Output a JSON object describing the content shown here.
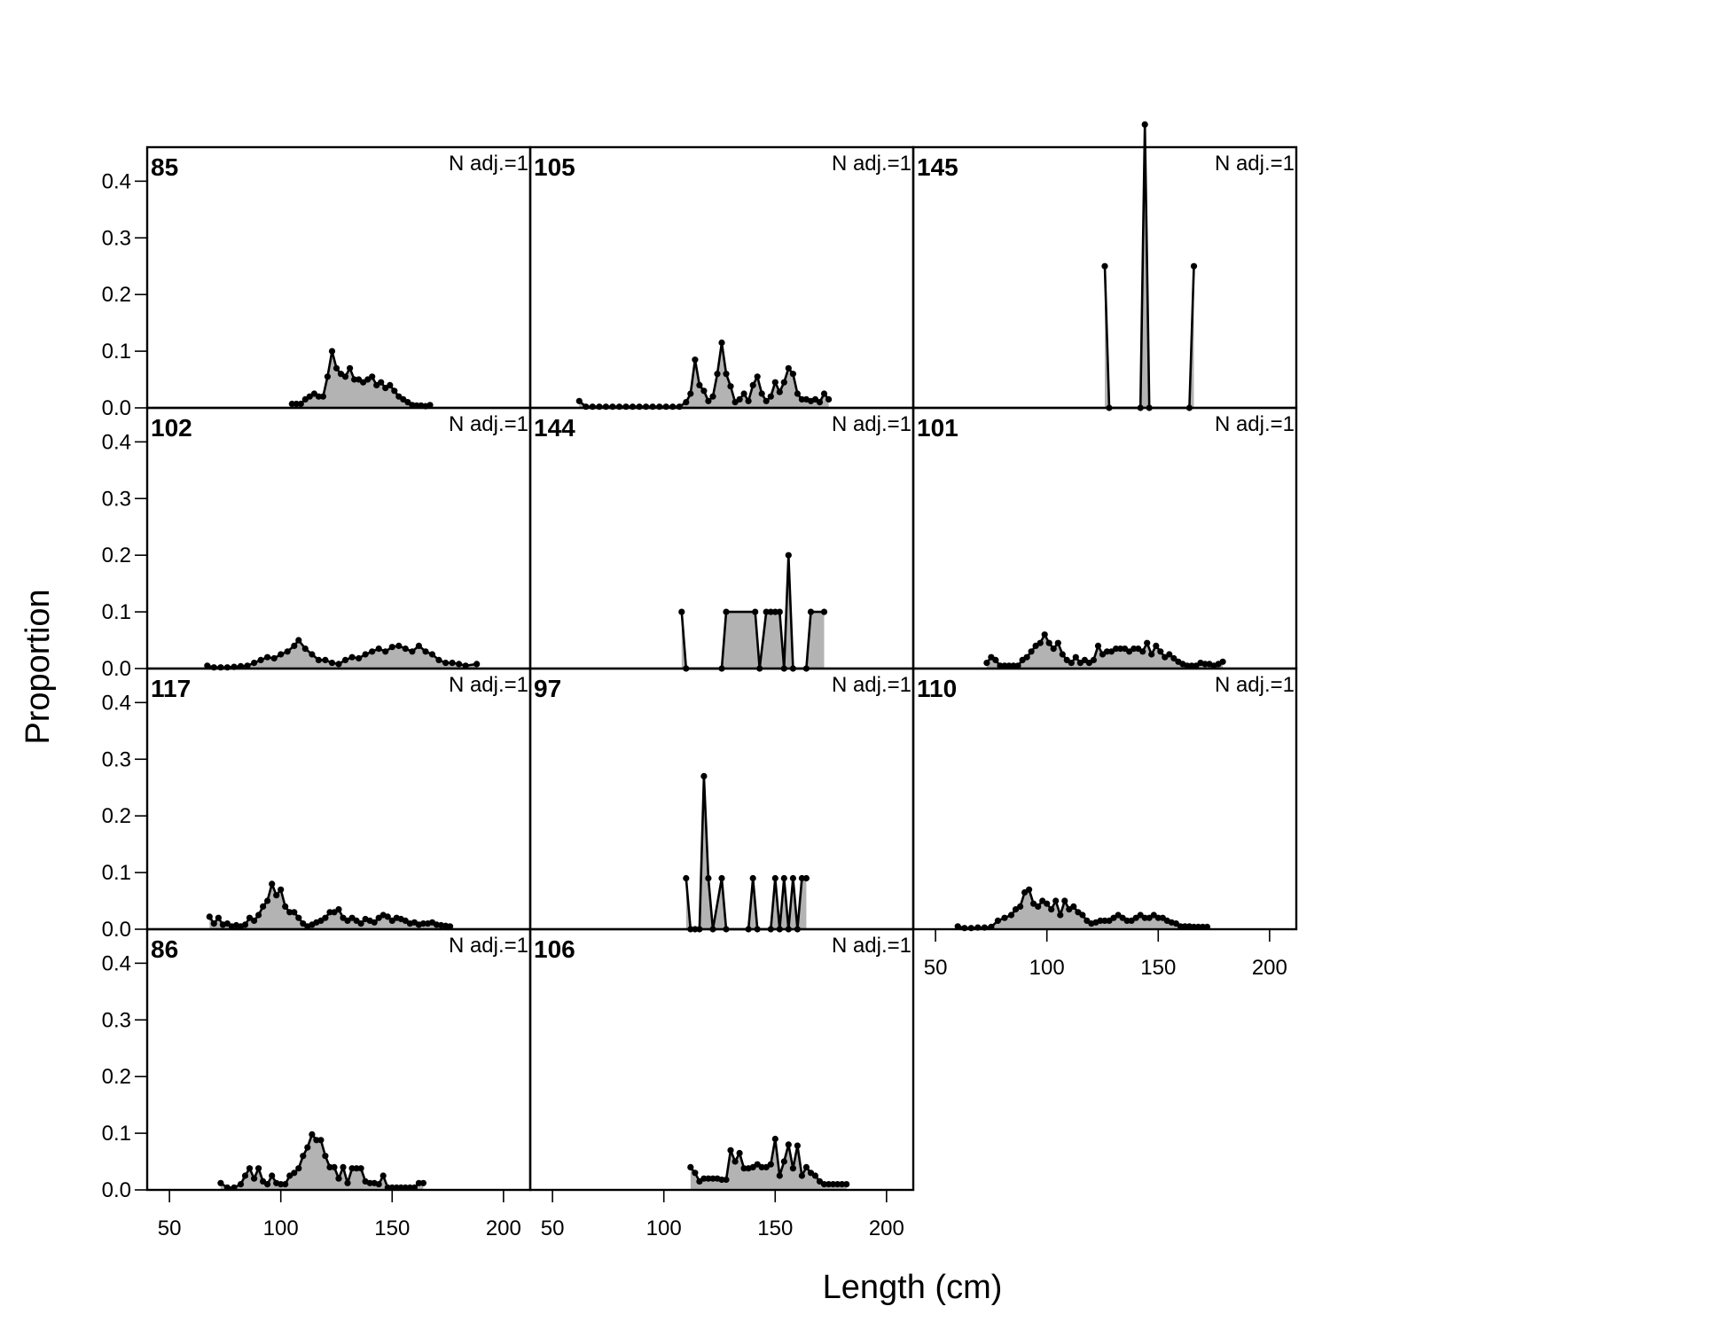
{
  "chart_data": {
    "type": "area",
    "xlabel": "Length (cm)",
    "ylabel": "Proportion",
    "xlim": [
      40,
      212
    ],
    "ylim": [
      0,
      0.46
    ],
    "x_ticks": [
      50,
      100,
      150,
      200
    ],
    "y_ticks": [
      "0.0",
      "0.1",
      "0.2",
      "0.3",
      "0.4"
    ],
    "panels": [
      {
        "label": "85",
        "note": "N adj.=1",
        "x": [
          105,
          107,
          109,
          111,
          113,
          115,
          117,
          119,
          121,
          123,
          125,
          127,
          129,
          131,
          133,
          135,
          137,
          139,
          141,
          143,
          145,
          147,
          149,
          151,
          153,
          155,
          157,
          159,
          161,
          163,
          165,
          167
        ],
        "y": [
          0.007,
          0.007,
          0.007,
          0.015,
          0.02,
          0.025,
          0.02,
          0.02,
          0.055,
          0.1,
          0.07,
          0.06,
          0.055,
          0.07,
          0.05,
          0.05,
          0.045,
          0.05,
          0.055,
          0.04,
          0.045,
          0.035,
          0.04,
          0.03,
          0.02,
          0.015,
          0.01,
          0.005,
          0.004,
          0.004,
          0.003,
          0.005
        ]
      },
      {
        "label": "102",
        "note": "N adj.=1",
        "x": [
          67,
          70,
          73,
          76,
          79,
          82,
          85,
          88,
          91,
          94,
          97,
          100,
          103,
          106,
          108,
          111,
          114,
          117,
          120,
          123,
          126,
          129,
          132,
          135,
          138,
          141,
          144,
          147,
          150,
          153,
          156,
          159,
          162,
          165,
          168,
          171,
          174,
          177,
          180,
          183,
          188
        ],
        "y": [
          0.005,
          0.002,
          0.002,
          0.002,
          0.003,
          0.004,
          0.005,
          0.01,
          0.015,
          0.02,
          0.018,
          0.025,
          0.03,
          0.04,
          0.05,
          0.035,
          0.025,
          0.015,
          0.015,
          0.01,
          0.008,
          0.015,
          0.02,
          0.018,
          0.025,
          0.03,
          0.035,
          0.03,
          0.038,
          0.04,
          0.035,
          0.03,
          0.04,
          0.03,
          0.025,
          0.015,
          0.01,
          0.01,
          0.008,
          0.005,
          0.008
        ]
      },
      {
        "label": "117",
        "note": "N adj.=1",
        "x": [
          68,
          70,
          72,
          74,
          76,
          78,
          80,
          82,
          84,
          86,
          88,
          90,
          92,
          94,
          96,
          98,
          100,
          102,
          104,
          106,
          108,
          110,
          112,
          114,
          116,
          118,
          120,
          122,
          124,
          126,
          128,
          130,
          132,
          134,
          136,
          138,
          140,
          142,
          144,
          146,
          148,
          150,
          152,
          154,
          156,
          158,
          160,
          162,
          164,
          166,
          168,
          170,
          172,
          174,
          176
        ],
        "y": [
          0.022,
          0.01,
          0.02,
          0.008,
          0.01,
          0.005,
          0.007,
          0.005,
          0.008,
          0.02,
          0.015,
          0.025,
          0.04,
          0.05,
          0.08,
          0.06,
          0.07,
          0.04,
          0.03,
          0.03,
          0.02,
          0.01,
          0.005,
          0.008,
          0.012,
          0.015,
          0.02,
          0.03,
          0.03,
          0.035,
          0.02,
          0.015,
          0.02,
          0.015,
          0.01,
          0.018,
          0.015,
          0.012,
          0.02,
          0.025,
          0.022,
          0.015,
          0.02,
          0.018,
          0.015,
          0.01,
          0.012,
          0.008,
          0.01,
          0.01,
          0.012,
          0.008,
          0.007,
          0.006,
          0.005
        ]
      },
      {
        "label": "86",
        "note": "N adj.=1",
        "x": [
          73,
          76,
          79,
          82,
          84,
          86,
          88,
          90,
          92,
          94,
          96,
          98,
          100,
          102,
          104,
          106,
          108,
          110,
          112,
          114,
          116,
          118,
          120,
          122,
          124,
          126,
          128,
          130,
          132,
          134,
          136,
          138,
          140,
          142,
          144,
          146,
          148,
          150,
          152,
          154,
          156,
          158,
          160,
          162,
          164
        ],
        "y": [
          0.012,
          0.004,
          0.004,
          0.01,
          0.025,
          0.038,
          0.02,
          0.038,
          0.015,
          0.01,
          0.025,
          0.012,
          0.01,
          0.01,
          0.025,
          0.03,
          0.038,
          0.06,
          0.075,
          0.098,
          0.088,
          0.088,
          0.06,
          0.04,
          0.04,
          0.02,
          0.04,
          0.012,
          0.038,
          0.038,
          0.038,
          0.015,
          0.012,
          0.012,
          0.01,
          0.025,
          0.004,
          0.004,
          0.004,
          0.004,
          0.004,
          0.004,
          0.004,
          0.012,
          0.012
        ]
      },
      {
        "label": "105",
        "note": "N adj.=1",
        "x": [
          62,
          65,
          68,
          71,
          74,
          77,
          80,
          83,
          86,
          89,
          92,
          95,
          98,
          101,
          104,
          107,
          110,
          112,
          114,
          116,
          118,
          120,
          122,
          124,
          126,
          128,
          130,
          132,
          134,
          136,
          138,
          140,
          142,
          144,
          146,
          148,
          150,
          152,
          154,
          156,
          158,
          160,
          162,
          164,
          166,
          168,
          170,
          172,
          174
        ],
        "y": [
          0.012,
          0.002,
          0.002,
          0.002,
          0.002,
          0.002,
          0.002,
          0.002,
          0.002,
          0.002,
          0.002,
          0.002,
          0.002,
          0.002,
          0.002,
          0.002,
          0.01,
          0.025,
          0.085,
          0.04,
          0.03,
          0.012,
          0.02,
          0.06,
          0.115,
          0.06,
          0.038,
          0.01,
          0.015,
          0.025,
          0.012,
          0.04,
          0.055,
          0.025,
          0.012,
          0.02,
          0.045,
          0.028,
          0.045,
          0.07,
          0.06,
          0.025,
          0.015,
          0.015,
          0.012,
          0.015,
          0.01,
          0.025,
          0.015
        ]
      },
      {
        "label": "144",
        "note": "N adj.=1",
        "x": [
          108,
          110,
          126,
          128,
          141,
          143,
          146,
          148,
          150,
          152,
          154,
          156,
          158,
          164,
          166,
          172
        ],
        "y": [
          0.1,
          0,
          0,
          0.1,
          0.1,
          0,
          0.1,
          0.1,
          0.1,
          0.1,
          0,
          0.2,
          0,
          0,
          0.1,
          0.1
        ]
      },
      {
        "label": "97",
        "note": "N adj.=1",
        "x": [
          110,
          112,
          114,
          116,
          118,
          120,
          122,
          126,
          128,
          138,
          140,
          142,
          148,
          150,
          152,
          154,
          156,
          158,
          160,
          162,
          164
        ],
        "y": [
          0.09,
          0,
          0,
          0,
          0.27,
          0.09,
          0,
          0.09,
          0,
          0,
          0.09,
          0,
          0,
          0.09,
          0,
          0.09,
          0,
          0.09,
          0,
          0.09,
          0.09
        ]
      },
      {
        "label": "106",
        "note": "N adj.=1",
        "x": [
          112,
          114,
          116,
          118,
          120,
          122,
          124,
          126,
          128,
          130,
          132,
          134,
          136,
          138,
          140,
          142,
          144,
          146,
          148,
          150,
          152,
          154,
          156,
          158,
          160,
          162,
          164,
          166,
          168,
          170,
          172,
          174,
          176,
          178,
          180,
          182
        ],
        "y": [
          0.04,
          0.03,
          0.015,
          0.02,
          0.02,
          0.02,
          0.02,
          0.018,
          0.018,
          0.07,
          0.05,
          0.065,
          0.038,
          0.038,
          0.04,
          0.045,
          0.04,
          0.04,
          0.045,
          0.09,
          0.025,
          0.05,
          0.08,
          0.038,
          0.078,
          0.025,
          0.04,
          0.03,
          0.025,
          0.015,
          0.01,
          0.01,
          0.01,
          0.01,
          0.01,
          0.01
        ]
      },
      {
        "label": "145",
        "note": "N adj.=1",
        "x": [
          126,
          128,
          142,
          144,
          146,
          164,
          166
        ],
        "y": [
          0.25,
          0,
          0,
          0.5,
          0,
          0,
          0.25
        ]
      },
      {
        "label": "101",
        "note": "N adj.=1",
        "x": [
          73,
          75,
          77,
          79,
          81,
          83,
          85,
          87,
          89,
          91,
          93,
          95,
          97,
          99,
          101,
          103,
          105,
          107,
          109,
          111,
          113,
          115,
          117,
          119,
          121,
          123,
          125,
          127,
          129,
          131,
          133,
          135,
          137,
          139,
          141,
          143,
          145,
          147,
          149,
          151,
          153,
          155,
          157,
          159,
          161,
          163,
          165,
          167,
          169,
          171,
          173,
          175,
          177,
          179
        ],
        "y": [
          0.01,
          0.02,
          0.015,
          0.005,
          0.005,
          0.005,
          0.005,
          0.005,
          0.015,
          0.02,
          0.03,
          0.04,
          0.045,
          0.06,
          0.045,
          0.035,
          0.045,
          0.025,
          0.015,
          0.01,
          0.02,
          0.01,
          0.015,
          0.01,
          0.015,
          0.04,
          0.025,
          0.03,
          0.03,
          0.035,
          0.035,
          0.035,
          0.03,
          0.035,
          0.035,
          0.03,
          0.045,
          0.025,
          0.04,
          0.03,
          0.02,
          0.025,
          0.018,
          0.012,
          0.008,
          0.005,
          0.005,
          0.005,
          0.01,
          0.008,
          0.008,
          0.005,
          0.008,
          0.012
        ]
      },
      {
        "label": "110",
        "note": "N adj.=1",
        "x": [
          60,
          63,
          66,
          69,
          72,
          75,
          78,
          81,
          84,
          86,
          88,
          90,
          92,
          94,
          96,
          98,
          100,
          102,
          104,
          106,
          108,
          110,
          112,
          114,
          116,
          118,
          120,
          122,
          124,
          126,
          128,
          130,
          132,
          134,
          136,
          138,
          140,
          142,
          144,
          146,
          148,
          150,
          152,
          154,
          156,
          158,
          160,
          162,
          164,
          166,
          168,
          170,
          172
        ],
        "y": [
          0.005,
          0.002,
          0.002,
          0.003,
          0.003,
          0.004,
          0.015,
          0.02,
          0.025,
          0.035,
          0.04,
          0.065,
          0.07,
          0.045,
          0.04,
          0.05,
          0.045,
          0.035,
          0.05,
          0.025,
          0.05,
          0.035,
          0.04,
          0.03,
          0.025,
          0.015,
          0.01,
          0.012,
          0.015,
          0.015,
          0.015,
          0.02,
          0.025,
          0.02,
          0.015,
          0.015,
          0.02,
          0.025,
          0.02,
          0.02,
          0.025,
          0.02,
          0.02,
          0.015,
          0.012,
          0.01,
          0.005,
          0.005,
          0.005,
          0.004,
          0.004,
          0.004,
          0.004
        ]
      }
    ]
  }
}
